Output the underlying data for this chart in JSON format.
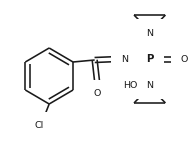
{
  "background": "#ffffff",
  "line_color": "#1a1a1a",
  "line_width": 1.15,
  "font_size": 6.8,
  "figsize": [
    1.88,
    1.44
  ],
  "dpi": 100,
  "xlim": [
    0,
    188
  ],
  "ylim": [
    0,
    144
  ]
}
